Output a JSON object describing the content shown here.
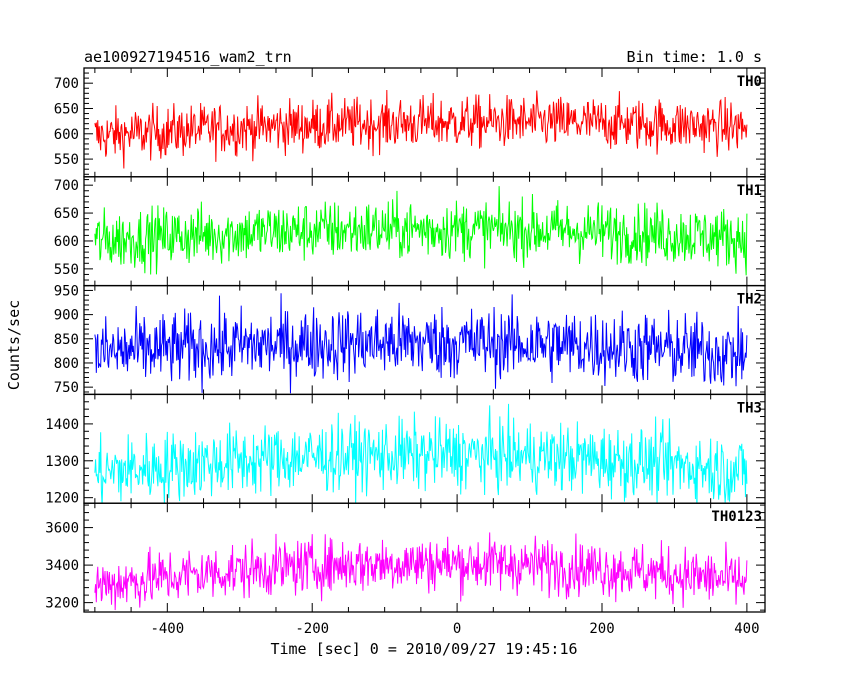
{
  "chart_data": {
    "type": "line",
    "title": "ae100927194516_wam2_trn",
    "subtitle": "Bin time: 1.0 s",
    "xlabel": "Time [sec] 0 = 2010/09/27 19:45:16",
    "ylabel": "Counts/sec",
    "xlim": [
      -515,
      425
    ],
    "x_ticks": [
      -400,
      -200,
      0,
      200,
      400
    ],
    "x_range": [
      -500,
      400
    ],
    "bin_time": 1.0,
    "panels": [
      {
        "name": "TH0",
        "color": "#ff0000",
        "ylim": [
          515,
          730
        ],
        "ticks": [
          550,
          600,
          650,
          700
        ],
        "baseline": [
          595,
          640,
          612
        ],
        "noise": 26
      },
      {
        "name": "TH1",
        "color": "#00ff00",
        "ylim": [
          520,
          715
        ],
        "ticks": [
          550,
          600,
          650,
          700
        ],
        "baseline": [
          600,
          640,
          604
        ],
        "noise": 27
      },
      {
        "name": "TH2",
        "color": "#0000ff",
        "ylim": [
          735,
          960
        ],
        "ticks": [
          750,
          800,
          850,
          900,
          950
        ],
        "baseline": [
          820,
          865,
          818
        ],
        "noise": 38
      },
      {
        "name": "TH3",
        "color": "#00ffff",
        "ylim": [
          1185,
          1480
        ],
        "ticks": [
          1200,
          1300,
          1400
        ],
        "baseline": [
          1265,
          1365,
          1270
        ],
        "noise": 48
      },
      {
        "name": "TH0123",
        "color": "#ff00ff",
        "ylim": [
          3150,
          3730
        ],
        "ticks": [
          3200,
          3400,
          3600
        ],
        "baseline": [
          3290,
          3520,
          3310
        ],
        "noise": 75
      }
    ]
  }
}
